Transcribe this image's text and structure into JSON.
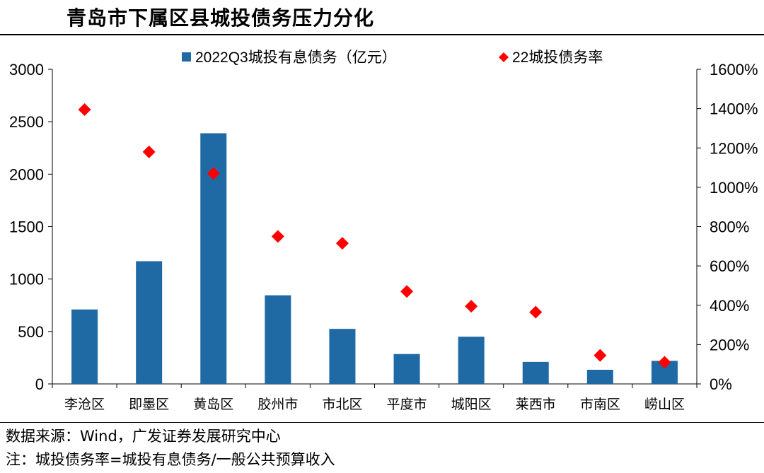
{
  "title": "青岛市下属区县城投债务压力分化",
  "notes": {
    "source": "数据来源：Wind，广发证券发展研究中心",
    "formula": "注：城投债务率=城投有息债务/一般公共预算收入"
  },
  "colors": {
    "bar": "#1f6aa5",
    "marker": "#ff0000",
    "axis": "#000000"
  },
  "chart_data": {
    "type": "bar",
    "categories": [
      "李沧区",
      "即墨区",
      "黄岛区",
      "胶州市",
      "市北区",
      "平度市",
      "城阳区",
      "莱西市",
      "市南区",
      "崂山区"
    ],
    "series": [
      {
        "name": "2022Q3城投有息债务（亿元）",
        "type": "bar",
        "axis": "left",
        "values": [
          710,
          1170,
          2390,
          845,
          525,
          285,
          450,
          210,
          135,
          220
        ]
      },
      {
        "name": "22城投债务率",
        "type": "scatter",
        "axis": "right",
        "values": [
          13.95,
          11.8,
          10.7,
          7.5,
          7.15,
          4.7,
          3.95,
          3.65,
          1.45,
          1.1
        ]
      }
    ],
    "y_left": {
      "min": 0,
      "max": 3000,
      "ticks": [
        "0",
        "500",
        "1000",
        "1500",
        "2000",
        "2500",
        "3000"
      ]
    },
    "y_right": {
      "min": 0,
      "max": 16,
      "ticks": [
        "0%",
        "200%",
        "400%",
        "600%",
        "800%",
        "1000%",
        "1200%",
        "1400%",
        "1600%"
      ]
    },
    "legend_position": "top",
    "grid": false
  }
}
